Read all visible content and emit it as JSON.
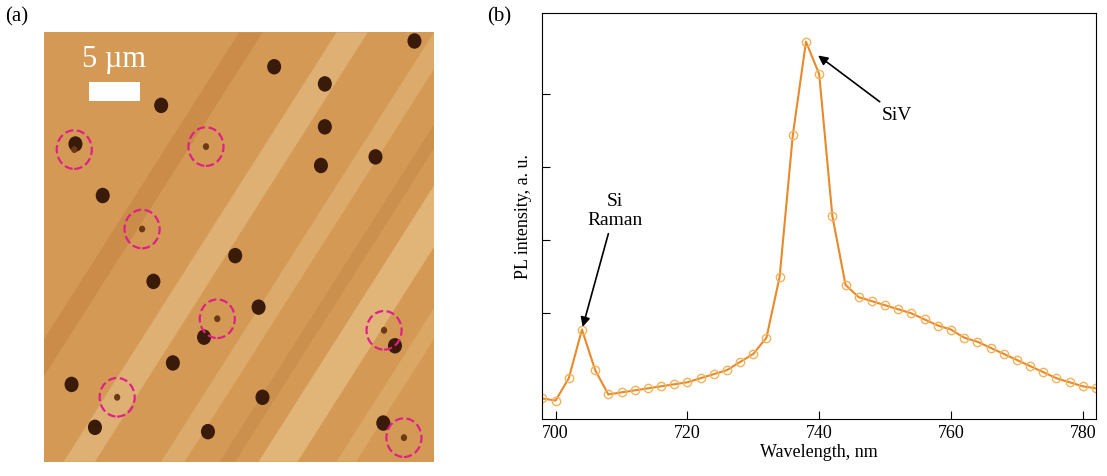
{
  "image_panel": {
    "label": "(a)",
    "scale_bar": "5 µm"
  },
  "chart_panel_label": "(b)",
  "chart_data": {
    "type": "line",
    "x_label": "Wavelength, nm",
    "y_label": "PL intensity, a. u.",
    "x": [
      698,
      700,
      702,
      704,
      706,
      708,
      710,
      712,
      714,
      716,
      718,
      720,
      722,
      724,
      726,
      728,
      730,
      732,
      734,
      736,
      738,
      740,
      742,
      744,
      746,
      748,
      750,
      752,
      754,
      756,
      758,
      760,
      762,
      764,
      766,
      768,
      770,
      772,
      774,
      776,
      778,
      780,
      782
    ],
    "series": [
      {
        "color": "#e8892a",
        "marker": "o",
        "line_style": "solid",
        "values": [
          0.05,
          0.045,
          0.1,
          0.22,
          0.12,
          0.06,
          0.065,
          0.07,
          0.075,
          0.08,
          0.085,
          0.09,
          0.1,
          0.11,
          0.12,
          0.14,
          0.16,
          0.2,
          0.35,
          0.7,
          0.93,
          0.85,
          0.5,
          0.33,
          0.3,
          0.29,
          0.28,
          0.27,
          0.26,
          0.245,
          0.23,
          0.22,
          0.2,
          0.19,
          0.175,
          0.16,
          0.145,
          0.13,
          0.115,
          0.1,
          0.09,
          0.08,
          0.075
        ]
      }
    ],
    "xlim": [
      698,
      782
    ],
    "xticks": [
      700,
      720,
      740,
      760,
      780
    ],
    "ylim": [
      0,
      1
    ],
    "yticks": [
      0.26,
      0.44,
      0.62,
      0.8
    ],
    "tick_labels": "x",
    "grid": false,
    "annotations": [
      {
        "text": "Si\nRaman",
        "x": 704,
        "y": 0.22
      },
      {
        "text": "SiV",
        "x": 739.5,
        "y": 0.9
      }
    ]
  }
}
